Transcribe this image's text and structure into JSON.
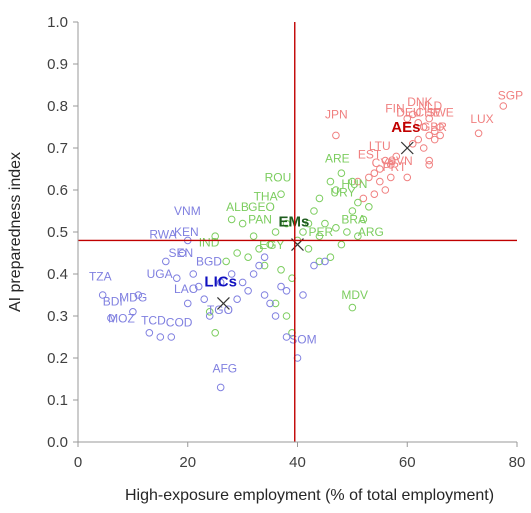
{
  "chart_data": {
    "type": "scatter",
    "xlabel": "High-exposure employment (% of total employment)",
    "ylabel": "AI preparedness index",
    "xlim": [
      0,
      80
    ],
    "ylim": [
      0,
      1
    ],
    "x_ticks": [
      "0",
      "20",
      "40",
      "60",
      "80"
    ],
    "y_ticks": [
      "0.0",
      "0.1",
      "0.2",
      "0.3",
      "0.4",
      "0.5",
      "0.6",
      "0.7",
      "0.8",
      "0.9",
      "1.0"
    ],
    "reference_lines": {
      "x": 39.5,
      "y": 0.48,
      "color": "#c00000"
    },
    "grid": false,
    "colors": {
      "AEs": "#f08080",
      "EMs": "#7ccd5f",
      "LICs": "#8080e0",
      "AEs_label": "#c00000",
      "EMs_label": "#1e5c1e",
      "LICs_label": "#1010c0"
    },
    "series": [
      {
        "name": "AEs",
        "centroid": {
          "x": 60,
          "y": 0.7
        },
        "points": [
          {
            "x": 77.5,
            "y": 0.8
          },
          {
            "x": 73,
            "y": 0.735
          },
          {
            "x": 47,
            "y": 0.73
          },
          {
            "x": 60,
            "y": 0.77
          },
          {
            "x": 61,
            "y": 0.78
          },
          {
            "x": 62,
            "y": 0.76
          },
          {
            "x": 63,
            "y": 0.75
          },
          {
            "x": 64,
            "y": 0.77
          },
          {
            "x": 65,
            "y": 0.74
          },
          {
            "x": 62,
            "y": 0.72
          },
          {
            "x": 61,
            "y": 0.71
          },
          {
            "x": 63,
            "y": 0.7
          },
          {
            "x": 65,
            "y": 0.72
          },
          {
            "x": 64,
            "y": 0.73
          },
          {
            "x": 66,
            "y": 0.73
          },
          {
            "x": 58,
            "y": 0.68
          },
          {
            "x": 57,
            "y": 0.66
          },
          {
            "x": 56,
            "y": 0.67
          },
          {
            "x": 55,
            "y": 0.65
          },
          {
            "x": 54,
            "y": 0.64
          },
          {
            "x": 53,
            "y": 0.63
          },
          {
            "x": 55,
            "y": 0.62
          },
          {
            "x": 57,
            "y": 0.63
          },
          {
            "x": 56,
            "y": 0.6
          },
          {
            "x": 54,
            "y": 0.59
          },
          {
            "x": 52,
            "y": 0.58
          },
          {
            "x": 51,
            "y": 0.62
          },
          {
            "x": 64,
            "y": 0.67
          },
          {
            "x": 64,
            "y": 0.66
          },
          {
            "x": 66,
            "y": 0.75
          },
          {
            "x": 60,
            "y": 0.63
          }
        ],
        "labels": [
          {
            "text": "SGP",
            "x": 76.5,
            "y": 0.815
          },
          {
            "text": "LUX",
            "x": 71.5,
            "y": 0.76
          },
          {
            "text": "JPN",
            "x": 45,
            "y": 0.77
          },
          {
            "text": "DNK",
            "x": 60,
            "y": 0.8
          },
          {
            "text": "FIN",
            "x": 56,
            "y": 0.785
          },
          {
            "text": "DEU",
            "x": 58,
            "y": 0.775
          },
          {
            "text": "CHE",
            "x": 61.5,
            "y": 0.775
          },
          {
            "text": "NLD",
            "x": 62,
            "y": 0.79
          },
          {
            "text": "SWE",
            "x": 63.5,
            "y": 0.775
          },
          {
            "text": "GBR",
            "x": 62.5,
            "y": 0.74
          },
          {
            "text": "LTU",
            "x": 53,
            "y": 0.695
          },
          {
            "text": "EST",
            "x": 51,
            "y": 0.675
          },
          {
            "text": "CYP",
            "x": 53.5,
            "y": 0.655
          },
          {
            "text": "SVN",
            "x": 56.5,
            "y": 0.66
          },
          {
            "text": "PRT",
            "x": 55.5,
            "y": 0.645
          }
        ]
      },
      {
        "name": "EMs",
        "centroid": {
          "x": 40,
          "y": 0.47
        },
        "points": [
          {
            "x": 50,
            "y": 0.32
          },
          {
            "x": 47,
            "y": 0.6
          },
          {
            "x": 37,
            "y": 0.59
          },
          {
            "x": 48,
            "y": 0.64
          },
          {
            "x": 50,
            "y": 0.62
          },
          {
            "x": 46,
            "y": 0.62
          },
          {
            "x": 43,
            "y": 0.55
          },
          {
            "x": 44,
            "y": 0.58
          },
          {
            "x": 45,
            "y": 0.52
          },
          {
            "x": 47,
            "y": 0.51
          },
          {
            "x": 49,
            "y": 0.5
          },
          {
            "x": 51,
            "y": 0.49
          },
          {
            "x": 48,
            "y": 0.47
          },
          {
            "x": 46,
            "y": 0.44
          },
          {
            "x": 44,
            "y": 0.43
          },
          {
            "x": 42,
            "y": 0.46
          },
          {
            "x": 40,
            "y": 0.48
          },
          {
            "x": 41,
            "y": 0.5
          },
          {
            "x": 38,
            "y": 0.52
          },
          {
            "x": 36,
            "y": 0.5
          },
          {
            "x": 35,
            "y": 0.47
          },
          {
            "x": 33,
            "y": 0.46
          },
          {
            "x": 32,
            "y": 0.49
          },
          {
            "x": 30,
            "y": 0.52
          },
          {
            "x": 28,
            "y": 0.53
          },
          {
            "x": 25,
            "y": 0.49
          },
          {
            "x": 31,
            "y": 0.44
          },
          {
            "x": 34,
            "y": 0.42
          },
          {
            "x": 37,
            "y": 0.41
          },
          {
            "x": 39,
            "y": 0.39
          },
          {
            "x": 36,
            "y": 0.33
          },
          {
            "x": 38,
            "y": 0.3
          },
          {
            "x": 39,
            "y": 0.26
          },
          {
            "x": 25,
            "y": 0.26
          },
          {
            "x": 24,
            "y": 0.31
          },
          {
            "x": 27,
            "y": 0.43
          },
          {
            "x": 29,
            "y": 0.45
          },
          {
            "x": 42,
            "y": 0.52
          },
          {
            "x": 44,
            "y": 0.49
          },
          {
            "x": 52,
            "y": 0.53
          },
          {
            "x": 53,
            "y": 0.56
          },
          {
            "x": 51,
            "y": 0.57
          },
          {
            "x": 50,
            "y": 0.55
          }
        ],
        "labels": [
          {
            "text": "MDV",
            "x": 48,
            "y": 0.34
          },
          {
            "text": "ROU",
            "x": 34,
            "y": 0.62
          },
          {
            "text": "ARE",
            "x": 45,
            "y": 0.665
          },
          {
            "text": "IND",
            "x": 22,
            "y": 0.465
          },
          {
            "text": "ALB",
            "x": 27,
            "y": 0.55
          },
          {
            "text": "GEO",
            "x": 31,
            "y": 0.55
          },
          {
            "text": "THA",
            "x": 32,
            "y": 0.575
          },
          {
            "text": "PAN",
            "x": 31,
            "y": 0.52
          },
          {
            "text": "URY",
            "x": 46,
            "y": 0.585
          },
          {
            "text": "HUN",
            "x": 48,
            "y": 0.605
          },
          {
            "text": "PER",
            "x": 42,
            "y": 0.49
          },
          {
            "text": "BRA",
            "x": 48,
            "y": 0.52
          },
          {
            "text": "ARG",
            "x": 51,
            "y": 0.49
          },
          {
            "text": "EGY",
            "x": 33,
            "y": 0.46
          }
        ]
      },
      {
        "name": "LICs",
        "centroid": {
          "x": 26.5,
          "y": 0.33
        },
        "points": [
          {
            "x": 4.5,
            "y": 0.35
          },
          {
            "x": 6,
            "y": 0.295
          },
          {
            "x": 10,
            "y": 0.31
          },
          {
            "x": 11,
            "y": 0.35
          },
          {
            "x": 13,
            "y": 0.26
          },
          {
            "x": 15,
            "y": 0.25
          },
          {
            "x": 17,
            "y": 0.25
          },
          {
            "x": 18,
            "y": 0.39
          },
          {
            "x": 16,
            "y": 0.43
          },
          {
            "x": 19,
            "y": 0.45
          },
          {
            "x": 20,
            "y": 0.48
          },
          {
            "x": 21,
            "y": 0.4
          },
          {
            "x": 22,
            "y": 0.37
          },
          {
            "x": 23,
            "y": 0.34
          },
          {
            "x": 24,
            "y": 0.3
          },
          {
            "x": 26,
            "y": 0.13
          },
          {
            "x": 28,
            "y": 0.4
          },
          {
            "x": 29,
            "y": 0.34
          },
          {
            "x": 30,
            "y": 0.38
          },
          {
            "x": 31,
            "y": 0.36
          },
          {
            "x": 32,
            "y": 0.4
          },
          {
            "x": 33,
            "y": 0.42
          },
          {
            "x": 34,
            "y": 0.35
          },
          {
            "x": 35,
            "y": 0.33
          },
          {
            "x": 36,
            "y": 0.3
          },
          {
            "x": 37,
            "y": 0.37
          },
          {
            "x": 38,
            "y": 0.25
          },
          {
            "x": 40,
            "y": 0.2
          },
          {
            "x": 41,
            "y": 0.35
          },
          {
            "x": 43,
            "y": 0.42
          },
          {
            "x": 45,
            "y": 0.43
          },
          {
            "x": 20,
            "y": 0.33
          },
          {
            "x": 26,
            "y": 0.38
          },
          {
            "x": 34,
            "y": 0.44
          },
          {
            "x": 38,
            "y": 0.36
          }
        ],
        "labels": [
          {
            "text": "TZA",
            "x": 2,
            "y": 0.385
          },
          {
            "text": "BDI",
            "x": 4.5,
            "y": 0.325
          },
          {
            "text": "MDG",
            "x": 7.5,
            "y": 0.335
          },
          {
            "text": "MOZ",
            "x": 5.5,
            "y": 0.285
          },
          {
            "text": "TCD",
            "x": 11.5,
            "y": 0.28
          },
          {
            "text": "COD",
            "x": 16,
            "y": 0.275
          },
          {
            "text": "UGA",
            "x": 12.5,
            "y": 0.39
          },
          {
            "text": "SEN",
            "x": 16.5,
            "y": 0.44
          },
          {
            "text": "RWA",
            "x": 13,
            "y": 0.485
          },
          {
            "text": "KEN",
            "x": 17.5,
            "y": 0.49
          },
          {
            "text": "VNM",
            "x": 17.5,
            "y": 0.54
          },
          {
            "text": "LAO",
            "x": 17.5,
            "y": 0.355
          },
          {
            "text": "BGD",
            "x": 21.5,
            "y": 0.42
          },
          {
            "text": "AFG",
            "x": 24.5,
            "y": 0.165
          },
          {
            "text": "SOM",
            "x": 38.5,
            "y": 0.235
          },
          {
            "text": "TGO",
            "x": 23.5,
            "y": 0.305
          }
        ]
      }
    ]
  }
}
